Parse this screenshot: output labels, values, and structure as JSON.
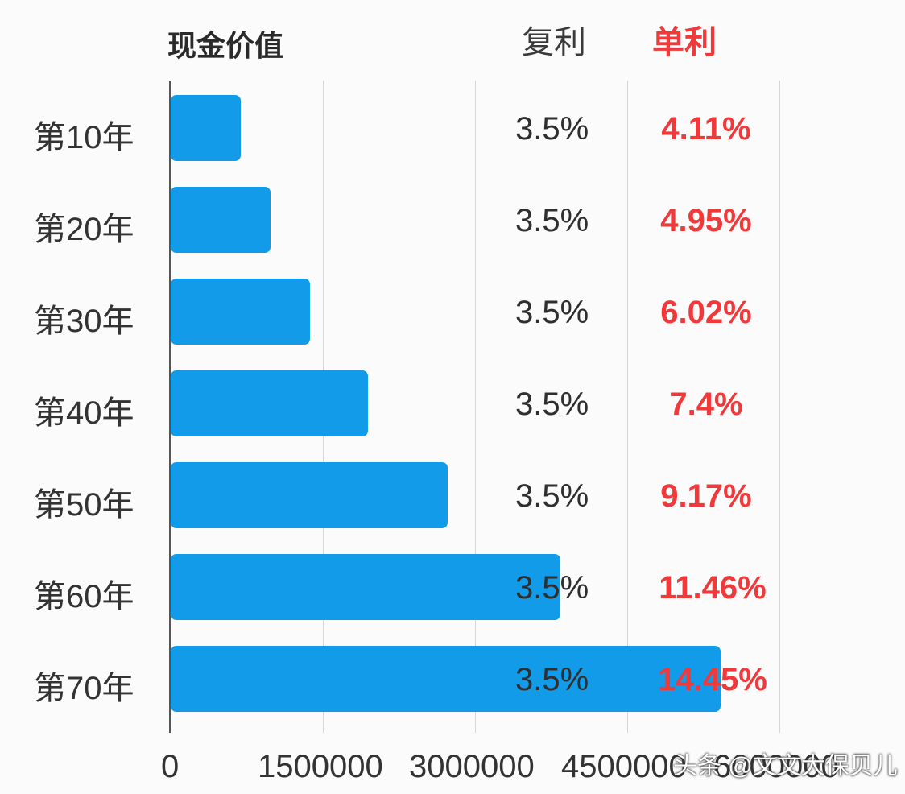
{
  "chart_data": {
    "type": "bar",
    "orientation": "horizontal",
    "title": "现金价值",
    "categories": [
      "第10年",
      "第20年",
      "第30年",
      "第40年",
      "第50年",
      "第60年",
      "第70年"
    ],
    "series": [
      {
        "name": "现金价值",
        "values": [
          690000,
          980000,
          1370000,
          1940000,
          2730000,
          3840000,
          5410000
        ],
        "color": "#129be8"
      }
    ],
    "annotations": {
      "复利": [
        "3.5%",
        "3.5%",
        "3.5%",
        "3.5%",
        "3.5%",
        "3.5%",
        "3.5%"
      ],
      "单利": [
        "4.11%",
        "4.95%",
        "6.02%",
        "7.4%",
        "9.17%",
        "11.46%",
        "14.45%"
      ]
    },
    "xlabel": "",
    "ylabel": "",
    "xlim": [
      0,
      6000000
    ],
    "x_ticks": [
      "0",
      "1500000",
      "3000000",
      "4500000",
      "6000000"
    ],
    "grid": true,
    "legend": null
  },
  "header": {
    "title": "现金价值",
    "compound_label": "复利",
    "simple_label": "单利"
  },
  "rows": [
    {
      "label": "第10年",
      "compound": "3.5%",
      "simple": "4.11%"
    },
    {
      "label": "第20年",
      "compound": "3.5%",
      "simple": "4.95%"
    },
    {
      "label": "第30年",
      "compound": "3.5%",
      "simple": "6.02%"
    },
    {
      "label": "第40年",
      "compound": "3.5%",
      "simple": "7.4%"
    },
    {
      "label": "第50年",
      "compound": "3.5%",
      "simple": "9.17%"
    },
    {
      "label": "第60年",
      "compound": "3.5%",
      "simple": "11.46%"
    },
    {
      "label": "第70年",
      "compound": "3.5%",
      "simple": "14.45%"
    }
  ],
  "axis": {
    "ticks": [
      "0",
      "1500000",
      "3000000",
      "4500000",
      "6000000"
    ]
  },
  "watermark": "头条 @文文大保贝儿",
  "colors": {
    "bar": "#129be8",
    "simple_rate": "#f0393a",
    "compound_rate": "#2f2f2f"
  }
}
